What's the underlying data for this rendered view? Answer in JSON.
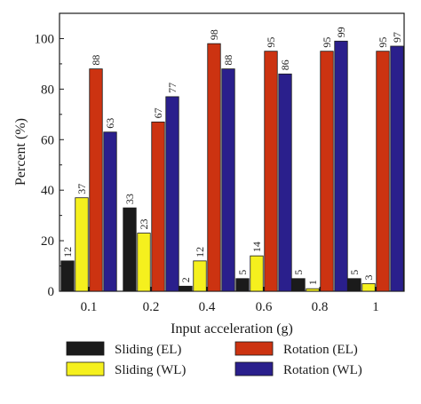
{
  "chart_data": {
    "type": "bar",
    "categories": [
      "0.1",
      "0.2",
      "0.4",
      "0.6",
      "0.8",
      "1"
    ],
    "series": [
      {
        "name": "Sliding (EL)",
        "values": [
          12,
          33,
          2,
          5,
          5,
          5
        ],
        "color": "#1b1b1b"
      },
      {
        "name": "Sliding (WL)",
        "values": [
          37,
          23,
          12,
          14,
          1,
          3
        ],
        "color": "#f5f01e"
      },
      {
        "name": "Rotation (EL)",
        "values": [
          88,
          67,
          98,
          95,
          95,
          95
        ],
        "color": "#cc3311"
      },
      {
        "name": "Rotation (WL)",
        "values": [
          63,
          77,
          88,
          86,
          99,
          97
        ],
        "color": "#2a1f8c"
      }
    ],
    "data_labels": [
      [
        "12",
        "33",
        "2",
        "5",
        "5",
        "5"
      ],
      [
        "37",
        "23",
        "12",
        "14",
        "1",
        "3"
      ],
      [
        "88",
        "67",
        "98",
        "95",
        "95",
        "95"
      ],
      [
        "63",
        "77",
        "88",
        "86",
        "99",
        "97"
      ]
    ],
    "xlabel": "Input acceleration (g)",
    "ylabel": "Percent (%)",
    "ylim": [
      0,
      110
    ],
    "yticks": [
      0,
      20,
      40,
      60,
      80,
      100
    ],
    "grid": false,
    "legend_position": "bottom"
  }
}
